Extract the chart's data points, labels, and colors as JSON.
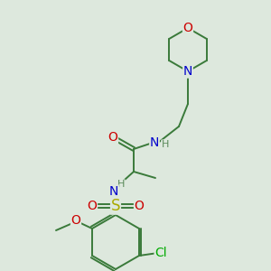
{
  "bg_color": "#dde8dd",
  "bond_color": "#3a7a3a",
  "atom_colors": {
    "O": "#cc0000",
    "N": "#0000cc",
    "S": "#aaaa00",
    "Cl": "#00aa00",
    "C": "#3a7a3a",
    "H": "#5a8a5a"
  },
  "font_size_atom": 10,
  "font_size_small": 8,
  "lw": 1.4
}
